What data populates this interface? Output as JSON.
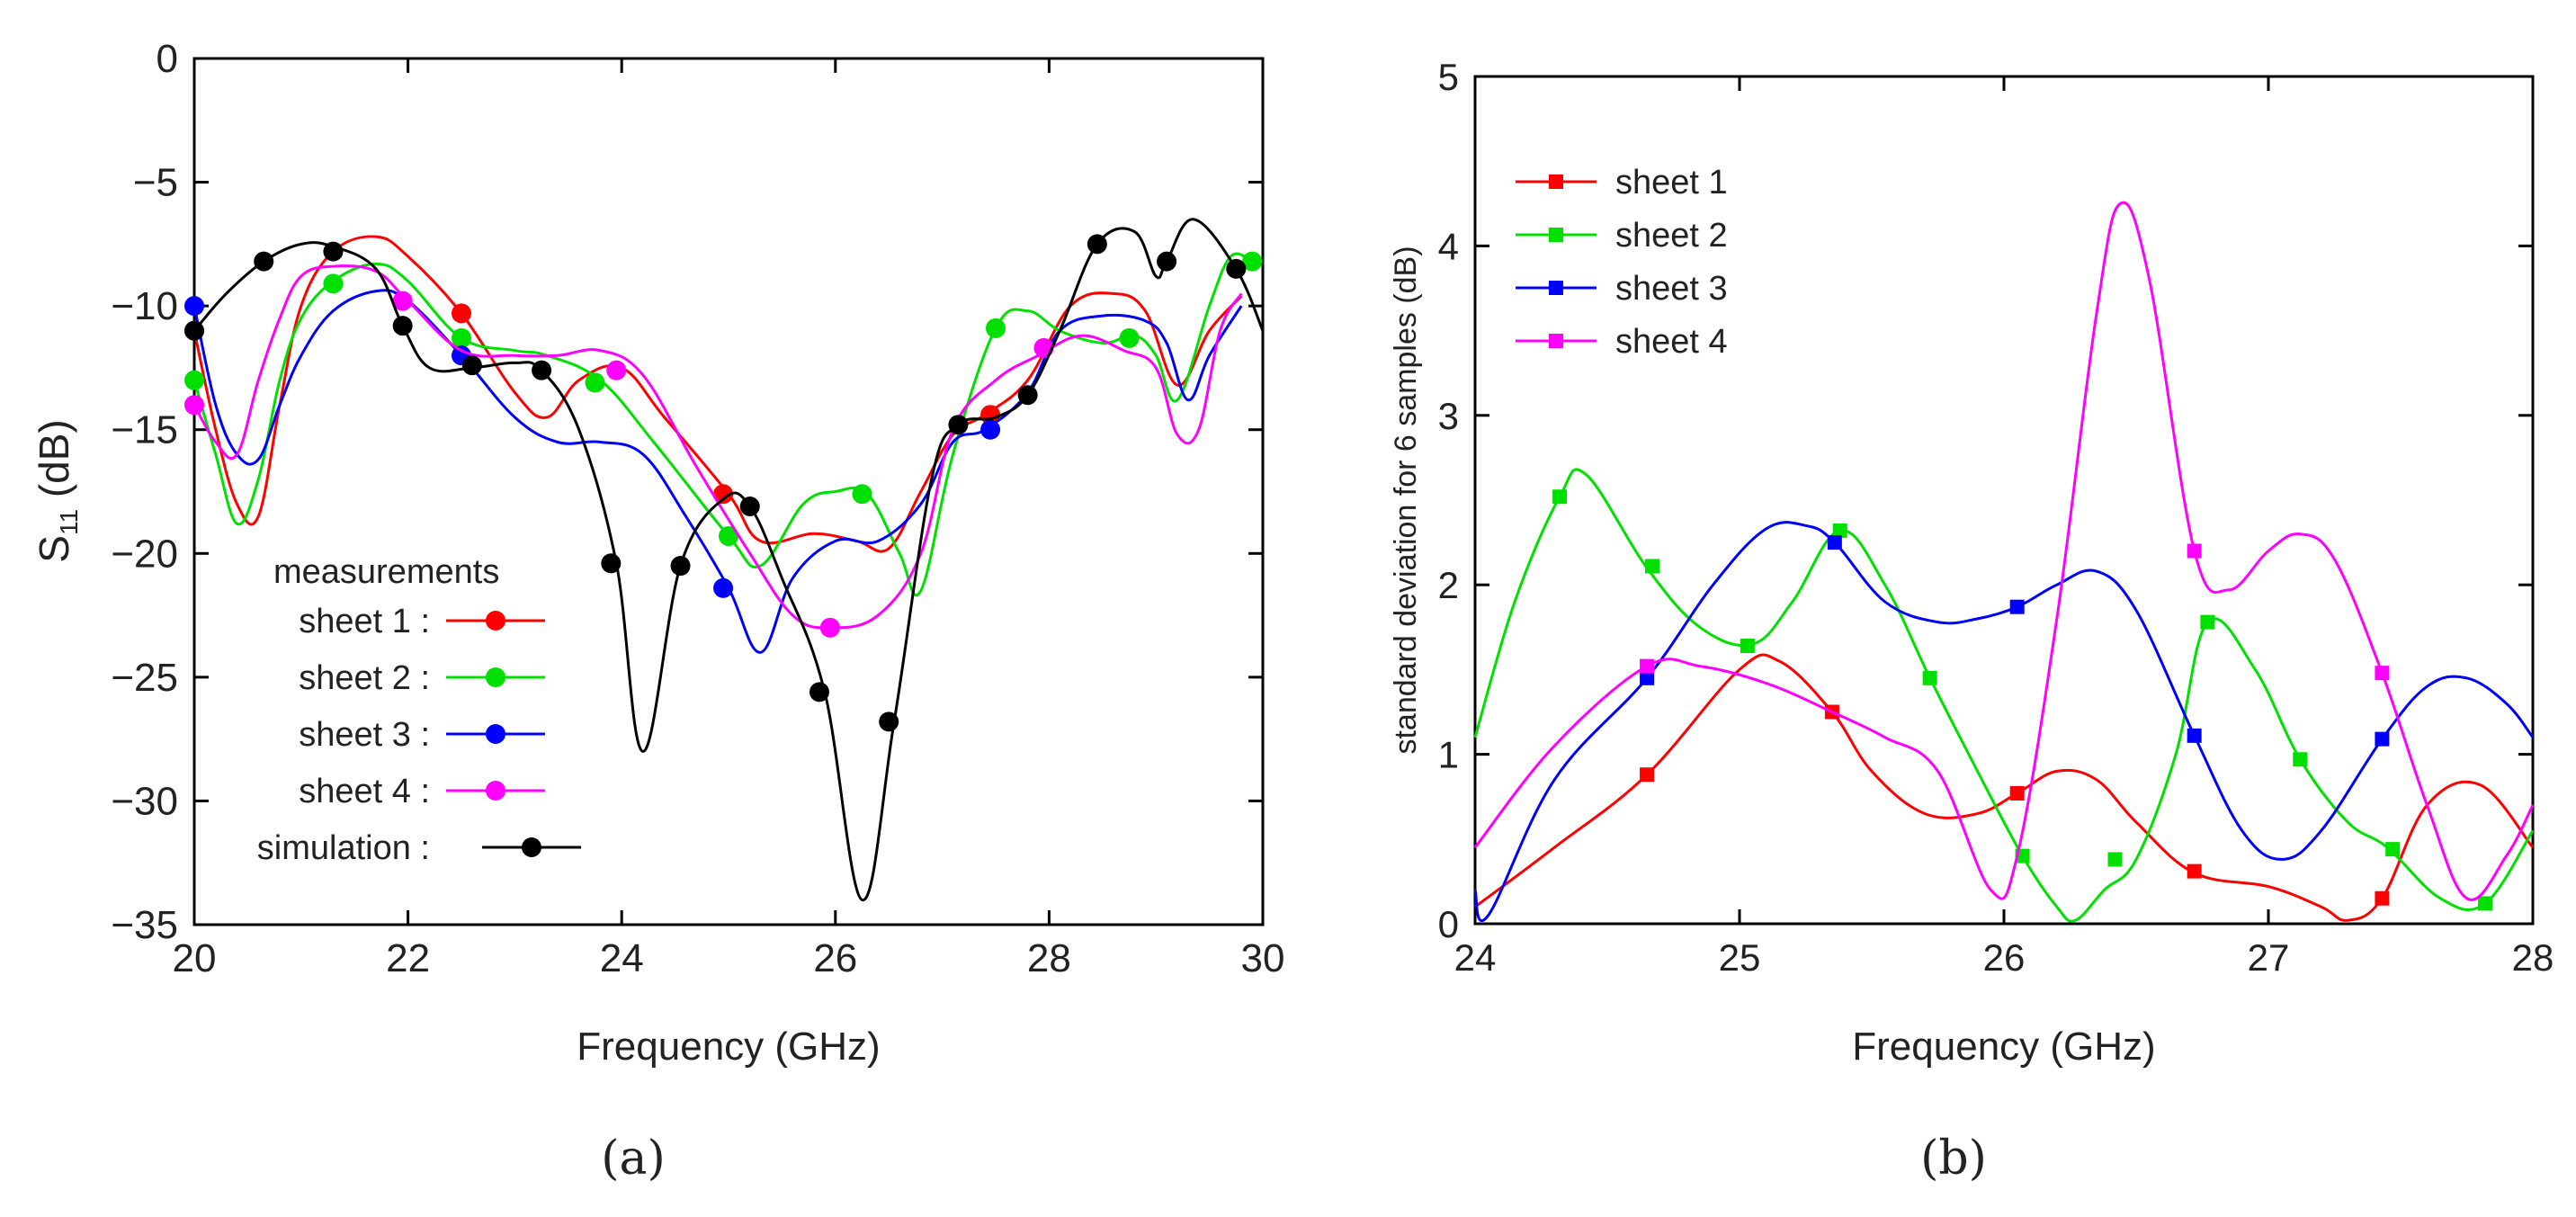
{
  "chart_data": [
    {
      "id": "a",
      "type": "line",
      "panel_label": "(a)",
      "xlabel": "Frequency (GHz)",
      "ylabel_main": "S",
      "ylabel_sub": "11",
      "ylabel_unit": " (dB)",
      "xlim": [
        20,
        30
      ],
      "ylim": [
        -35,
        0
      ],
      "xticks": [
        20,
        22,
        24,
        26,
        28,
        30
      ],
      "xtick_labels": [
        "20",
        "22",
        "24",
        "26",
        "28",
        "30"
      ],
      "yticks": [
        0,
        -5,
        -10,
        -15,
        -20,
        -25,
        -30,
        -35
      ],
      "ytick_labels": [
        "0",
        "−5",
        "−10",
        "−15",
        "−20",
        "−25",
        "−30",
        "−35"
      ],
      "legend_title": "measurements",
      "legend_position": "lower-left",
      "series": [
        {
          "name": "sheet 1 :",
          "color": "#ff0000",
          "x": [
            20,
            20.2,
            20.4,
            20.6,
            20.8,
            21.0,
            21.3,
            21.7,
            22.0,
            22.5,
            23.0,
            23.3,
            23.6,
            24.0,
            24.4,
            25.0,
            25.3,
            25.8,
            26.2,
            26.5,
            26.8,
            27.1,
            27.4,
            27.8,
            28.2,
            28.6,
            28.9,
            29.2,
            29.5,
            29.8
          ],
          "y": [
            -11,
            -15,
            -18,
            -18.5,
            -14,
            -10,
            -7.8,
            -7.2,
            -8,
            -10.3,
            -13.5,
            -14.5,
            -13,
            -12.5,
            -14.5,
            -17.6,
            -19.5,
            -19.2,
            -19.5,
            -19.8,
            -17.5,
            -15.2,
            -14.4,
            -13,
            -10,
            -9.5,
            -10.2,
            -13.2,
            -11,
            -9.6
          ],
          "markers": [
            {
              "x": 20,
              "y": -11
            },
            {
              "x": 22.5,
              "y": -10.3
            },
            {
              "x": 24.95,
              "y": -17.6
            },
            {
              "x": 27.45,
              "y": -14.4
            }
          ]
        },
        {
          "name": "sheet 2 :",
          "color": "#00e000",
          "x": [
            20,
            20.2,
            20.4,
            20.6,
            20.8,
            21.0,
            21.3,
            21.7,
            22.0,
            22.5,
            23.0,
            23.3,
            23.8,
            24.3,
            25.0,
            25.3,
            25.7,
            26.0,
            26.3,
            26.6,
            26.8,
            27.1,
            27.5,
            27.8,
            28.1,
            28.5,
            28.8,
            29.0,
            29.2,
            29.5,
            29.7,
            29.9
          ],
          "y": [
            -13,
            -16,
            -18.8,
            -17,
            -13,
            -10.5,
            -9,
            -8.3,
            -9,
            -11.3,
            -11.8,
            -12,
            -13,
            -15.5,
            -19.3,
            -20.5,
            -18,
            -17.5,
            -17.6,
            -20,
            -21.5,
            -16,
            -10.9,
            -10.2,
            -11,
            -11.5,
            -11.2,
            -12,
            -13.8,
            -10,
            -8,
            -8.2
          ],
          "markers": [
            {
              "x": 20,
              "y": -13
            },
            {
              "x": 21.3,
              "y": -9.1
            },
            {
              "x": 22.5,
              "y": -11.3
            },
            {
              "x": 23.75,
              "y": -13.1
            },
            {
              "x": 25,
              "y": -19.3
            },
            {
              "x": 26.25,
              "y": -17.6
            },
            {
              "x": 27.5,
              "y": -10.9
            },
            {
              "x": 28.75,
              "y": -11.3
            },
            {
              "x": 29.9,
              "y": -8.2
            }
          ]
        },
        {
          "name": "sheet 3 :",
          "color": "#0000ff",
          "x": [
            20,
            20.2,
            20.4,
            20.6,
            20.8,
            21.0,
            21.3,
            21.7,
            22.0,
            22.5,
            23.0,
            23.4,
            23.8,
            24.2,
            24.6,
            25.0,
            25.3,
            25.6,
            26.0,
            26.4,
            26.8,
            27.1,
            27.4,
            27.8,
            28.1,
            28.5,
            28.9,
            29.1,
            29.3,
            29.5,
            29.8
          ],
          "y": [
            -10,
            -14,
            -16,
            -16.2,
            -14,
            -12,
            -10.2,
            -9.4,
            -9.8,
            -12,
            -14.5,
            -15.5,
            -15.5,
            -16,
            -18.5,
            -21.4,
            -24,
            -21,
            -19.5,
            -19.5,
            -18,
            -15.5,
            -15,
            -13.5,
            -11,
            -10.4,
            -10.6,
            -11.5,
            -13.8,
            -12,
            -10
          ],
          "markers": [
            {
              "x": 20,
              "y": -10
            },
            {
              "x": 22.5,
              "y": -12
            },
            {
              "x": 24.95,
              "y": -21.4
            },
            {
              "x": 27.45,
              "y": -15
            }
          ]
        },
        {
          "name": "sheet 4 :",
          "color": "#ff00ff",
          "x": [
            20,
            20.2,
            20.4,
            20.6,
            20.8,
            21.0,
            21.3,
            21.7,
            22.0,
            22.5,
            23.0,
            23.4,
            23.8,
            24.2,
            24.7,
            25.2,
            25.6,
            25.95,
            26.4,
            26.8,
            27.1,
            27.5,
            27.9,
            28.3,
            28.7,
            29.0,
            29.2,
            29.4,
            29.6,
            29.8
          ],
          "y": [
            -14,
            -15.5,
            -16,
            -13,
            -10.5,
            -8.8,
            -8.4,
            -8.6,
            -9.8,
            -11.8,
            -12,
            -12,
            -11.8,
            -12.8,
            -16.5,
            -20,
            -22.5,
            -23,
            -22.5,
            -20,
            -15,
            -13,
            -12,
            -11.2,
            -11.8,
            -12.5,
            -15.2,
            -15,
            -11,
            -9.5
          ],
          "markers": [
            {
              "x": 20,
              "y": -14
            },
            {
              "x": 21.95,
              "y": -9.8
            },
            {
              "x": 23.95,
              "y": -12.6
            },
            {
              "x": 25.95,
              "y": -23
            },
            {
              "x": 27.95,
              "y": -11.7
            }
          ]
        },
        {
          "name": "simulation :",
          "color": "#000000",
          "x": [
            20,
            20.3,
            20.65,
            21.0,
            21.3,
            21.7,
            21.95,
            22.2,
            22.6,
            23.0,
            23.25,
            23.6,
            23.95,
            24.2,
            24.55,
            24.95,
            25.2,
            25.5,
            25.9,
            26.25,
            26.55,
            26.9,
            27.15,
            27.5,
            27.8,
            28.1,
            28.45,
            28.8,
            29.0,
            29.1,
            29.35,
            29.75,
            30.0
          ],
          "y": [
            -11,
            -9.5,
            -8.2,
            -7.5,
            -7.6,
            -8.5,
            -10.8,
            -12.5,
            -12.5,
            -12.3,
            -12.6,
            -15,
            -20.4,
            -28,
            -20.5,
            -17.8,
            -18.1,
            -21,
            -25.6,
            -34,
            -26.8,
            -17,
            -14.8,
            -14.5,
            -13.6,
            -11,
            -7.5,
            -7,
            -8.8,
            -8.2,
            -6.5,
            -8.5,
            -11
          ],
          "markers": [
            {
              "x": 20,
              "y": -11
            },
            {
              "x": 20.65,
              "y": -8.2
            },
            {
              "x": 21.3,
              "y": -7.8
            },
            {
              "x": 21.95,
              "y": -10.8
            },
            {
              "x": 22.6,
              "y": -12.4
            },
            {
              "x": 23.25,
              "y": -12.6
            },
            {
              "x": 23.9,
              "y": -20.4
            },
            {
              "x": 24.55,
              "y": -20.5
            },
            {
              "x": 25.2,
              "y": -18.1
            },
            {
              "x": 25.85,
              "y": -25.6
            },
            {
              "x": 26.5,
              "y": -26.8
            },
            {
              "x": 27.15,
              "y": -14.8
            },
            {
              "x": 27.8,
              "y": -13.6
            },
            {
              "x": 28.45,
              "y": -7.5
            },
            {
              "x": 29.1,
              "y": -8.2
            },
            {
              "x": 29.75,
              "y": -8.5
            }
          ]
        }
      ]
    },
    {
      "id": "b",
      "type": "line",
      "panel_label": "(b)",
      "xlabel": "Frequency (GHz)",
      "ylabel": "standard deviation for 6 samples (dB)",
      "xlim": [
        24,
        28
      ],
      "ylim": [
        0,
        5
      ],
      "xticks": [
        24,
        25,
        26,
        27,
        28
      ],
      "xtick_labels": [
        "24",
        "25",
        "26",
        "27",
        "28"
      ],
      "yticks": [
        0,
        1,
        2,
        3,
        4,
        5
      ],
      "ytick_labels": [
        "0",
        "1",
        "2",
        "3",
        "4",
        "5"
      ],
      "legend_position": "upper-left",
      "series": [
        {
          "name": "sheet 1",
          "color": "#ff0000",
          "x": [
            24,
            24.3,
            24.65,
            25.0,
            25.15,
            25.35,
            25.5,
            25.7,
            25.9,
            26.05,
            26.2,
            26.35,
            26.5,
            26.72,
            27.0,
            27.2,
            27.3,
            27.43,
            27.6,
            27.8,
            28.0
          ],
          "y": [
            0.1,
            0.45,
            0.88,
            1.5,
            1.55,
            1.25,
            0.9,
            0.65,
            0.65,
            0.77,
            0.9,
            0.85,
            0.6,
            0.3,
            0.22,
            0.1,
            0.02,
            0.15,
            0.7,
            0.82,
            0.45
          ],
          "markers": [
            {
              "x": 24.65,
              "y": 0.88
            },
            {
              "x": 25.35,
              "y": 1.25
            },
            {
              "x": 26.05,
              "y": 0.77
            },
            {
              "x": 26.72,
              "y": 0.31
            },
            {
              "x": 27.43,
              "y": 0.15
            }
          ]
        },
        {
          "name": "sheet 2",
          "color": "#00e000",
          "x": [
            24,
            24.15,
            24.32,
            24.42,
            24.65,
            24.85,
            25.05,
            25.2,
            25.38,
            25.55,
            25.72,
            25.9,
            26.07,
            26.2,
            26.27,
            26.38,
            26.5,
            26.65,
            26.77,
            26.95,
            27.12,
            27.3,
            27.45,
            27.65,
            27.82,
            28.0
          ],
          "y": [
            1.1,
            1.9,
            2.52,
            2.65,
            2.1,
            1.75,
            1.65,
            1.9,
            2.32,
            2.0,
            1.45,
            0.9,
            0.4,
            0.1,
            0.02,
            0.2,
            0.38,
            1.0,
            1.78,
            1.5,
            0.97,
            0.6,
            0.45,
            0.15,
            0.12,
            0.55
          ],
          "markers": [
            {
              "x": 24.32,
              "y": 2.52
            },
            {
              "x": 24.67,
              "y": 2.11
            },
            {
              "x": 25.03,
              "y": 1.64
            },
            {
              "x": 25.38,
              "y": 2.32
            },
            {
              "x": 25.72,
              "y": 1.45
            },
            {
              "x": 26.07,
              "y": 0.4
            },
            {
              "x": 26.42,
              "y": 0.38
            },
            {
              "x": 26.77,
              "y": 1.78
            },
            {
              "x": 27.12,
              "y": 0.97
            },
            {
              "x": 27.47,
              "y": 0.44
            },
            {
              "x": 27.82,
              "y": 0.12
            }
          ]
        },
        {
          "name": "sheet 3",
          "color": "#0000ff",
          "x": [
            24,
            24.05,
            24.3,
            24.65,
            24.9,
            25.1,
            25.25,
            25.36,
            25.55,
            25.75,
            25.9,
            26.05,
            26.2,
            26.35,
            26.5,
            26.72,
            26.9,
            27.05,
            27.2,
            27.43,
            27.6,
            27.75,
            27.9,
            28.0
          ],
          "y": [
            0.2,
            0.05,
            0.85,
            1.45,
            2.0,
            2.33,
            2.35,
            2.25,
            1.9,
            1.78,
            1.8,
            1.87,
            2.0,
            2.08,
            1.85,
            1.11,
            0.55,
            0.38,
            0.55,
            1.09,
            1.4,
            1.45,
            1.3,
            1.1
          ],
          "markers": [
            {
              "x": 24.65,
              "y": 1.45
            },
            {
              "x": 25.36,
              "y": 2.25
            },
            {
              "x": 26.05,
              "y": 1.87
            },
            {
              "x": 26.72,
              "y": 1.11
            },
            {
              "x": 27.43,
              "y": 1.09
            }
          ]
        },
        {
          "name": "sheet 4",
          "color": "#ff00ff",
          "x": [
            24,
            24.3,
            24.65,
            24.85,
            25.1,
            25.35,
            25.55,
            25.75,
            25.95,
            26.05,
            26.2,
            26.35,
            26.44,
            26.55,
            26.72,
            26.85,
            27.0,
            27.12,
            27.25,
            27.43,
            27.6,
            27.75,
            27.9,
            28.0
          ],
          "y": [
            0.45,
            1.05,
            1.52,
            1.52,
            1.42,
            1.25,
            1.1,
            0.9,
            0.2,
            0.4,
            1.8,
            3.6,
            4.25,
            3.8,
            2.2,
            1.97,
            2.2,
            2.3,
            2.15,
            1.48,
            0.7,
            0.15,
            0.4,
            0.7
          ],
          "markers": [
            {
              "x": 24.65,
              "y": 1.52
            },
            {
              "x": 26.72,
              "y": 2.2
            },
            {
              "x": 27.43,
              "y": 1.48
            }
          ]
        }
      ]
    }
  ]
}
